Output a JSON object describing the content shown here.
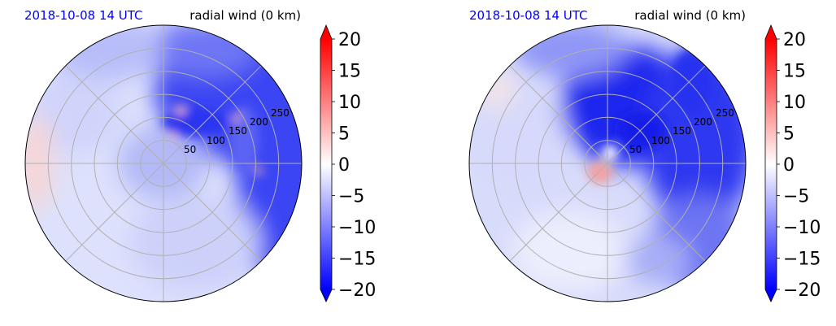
{
  "chart_data": [
    {
      "type": "heatmap",
      "projection": "polar",
      "title_left": "2018-10-08 14 UTC",
      "title_right": "radial wind (0 km)",
      "radial_ticks": [
        "50",
        "100",
        "150",
        "200",
        "250"
      ],
      "radial_tick_values": [
        50,
        100,
        150,
        200,
        250
      ],
      "r_max": 300,
      "angular_grid_deg": [
        0,
        45,
        90,
        135,
        180,
        225,
        270,
        315
      ],
      "grid": true,
      "colormap": "bwr",
      "colorbar": {
        "ticks": [
          "20",
          "15",
          "10",
          "5",
          "0",
          "−5",
          "−10",
          "−15",
          "−20"
        ],
        "tick_values": [
          20,
          15,
          10,
          5,
          0,
          -5,
          -10,
          -15,
          -20
        ],
        "vmin": -20,
        "vmax": 20,
        "extend": "both"
      },
      "field_features": [
        {
          "region": "NE sector",
          "value": -13,
          "extent": 0.8
        },
        {
          "region": "E sector",
          "value": -15,
          "extent": 0.7
        },
        {
          "region": "W edge",
          "value": 3,
          "extent": 0.2
        }
      ]
    },
    {
      "type": "heatmap",
      "projection": "polar",
      "title_left": "2018-10-08 14 UTC",
      "title_right": "radial wind (0 km)",
      "radial_ticks": [
        "50",
        "100",
        "150",
        "200",
        "250"
      ],
      "radial_tick_values": [
        50,
        100,
        150,
        200,
        250
      ],
      "r_max": 300,
      "angular_grid_deg": [
        0,
        45,
        90,
        135,
        180,
        225,
        270,
        315
      ],
      "grid": true,
      "colormap": "bwr",
      "colorbar": {
        "ticks": [
          "20",
          "15",
          "10",
          "5",
          "0",
          "−5",
          "−10",
          "−15",
          "−20"
        ],
        "tick_values": [
          20,
          15,
          10,
          5,
          0,
          -5,
          -10,
          -15,
          -20
        ],
        "vmin": -20,
        "vmax": 20,
        "extend": "both"
      },
      "field_features": [
        {
          "region": "N-NE sector",
          "value": -16,
          "extent": 0.7
        },
        {
          "region": "E sector",
          "value": -13,
          "extent": 0.9
        },
        {
          "region": "center-SW",
          "value": 6,
          "extent": 0.12
        }
      ]
    }
  ]
}
